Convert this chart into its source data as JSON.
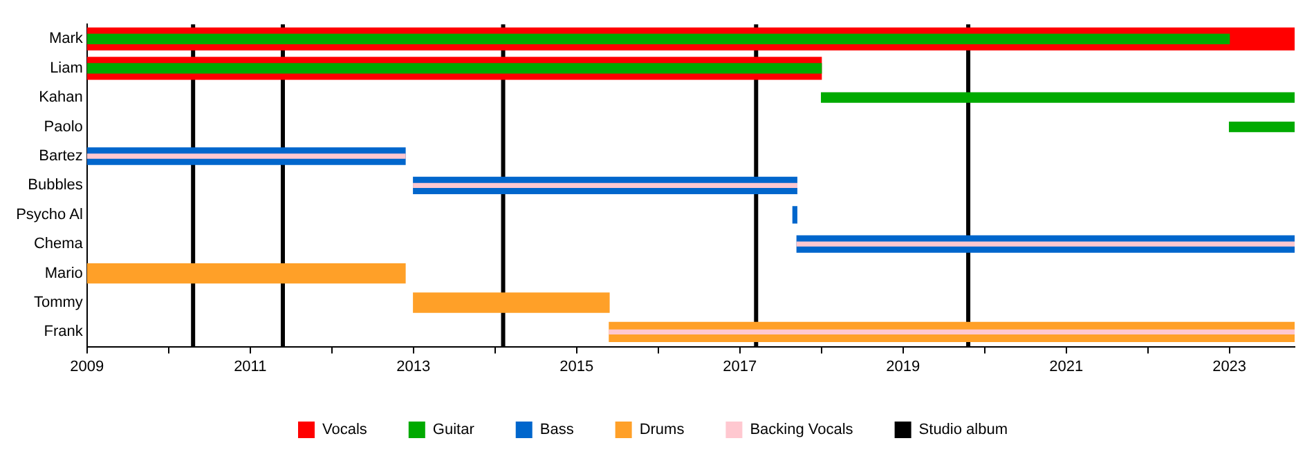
{
  "chart_data": {
    "type": "bar",
    "orientation": "horizontal",
    "categories": [
      "Mark",
      "Liam",
      "Kahan",
      "Paolo",
      "Bartez",
      "Bubbles",
      "Psycho Al",
      "Chema",
      "Mario",
      "Tommy",
      "Frank"
    ],
    "series": [
      {
        "name": "Vocals",
        "color": "#ff0000",
        "base": [
          2009,
          2009,
          null,
          null,
          null,
          null,
          null,
          null,
          null,
          null,
          null
        ],
        "values": [
          14.8,
          9,
          null,
          null,
          null,
          null,
          null,
          null,
          null,
          null,
          null
        ]
      },
      {
        "name": "Guitar",
        "color": "#00aa00",
        "base": [
          2009,
          2009,
          2018,
          2023,
          null,
          null,
          null,
          null,
          null,
          null,
          null
        ],
        "values": [
          14,
          9,
          5.8,
          0.8,
          null,
          null,
          null,
          null,
          null,
          null,
          null
        ]
      },
      {
        "name": "Bass",
        "color": "#0066cc",
        "base": [
          null,
          null,
          null,
          null,
          2009,
          2013,
          2017.65,
          2017.7,
          null,
          null,
          null
        ],
        "values": [
          null,
          null,
          null,
          null,
          3.9,
          4.7,
          0.05,
          6.1,
          null,
          null,
          null
        ]
      },
      {
        "name": "Drums",
        "color": "#ffa028",
        "base": [
          null,
          null,
          null,
          null,
          null,
          null,
          null,
          null,
          2009,
          2013,
          2015.4
        ],
        "values": [
          null,
          null,
          null,
          null,
          null,
          null,
          null,
          null,
          3.9,
          2.4,
          8.4
        ]
      },
      {
        "name": "Backing Vocals",
        "color": "#ffc8d0",
        "base": [
          null,
          null,
          null,
          null,
          2009,
          2013,
          null,
          2017.7,
          null,
          null,
          2015.4
        ],
        "values": [
          null,
          null,
          null,
          null,
          3.9,
          4.7,
          null,
          6.1,
          null,
          null,
          8.4
        ]
      }
    ],
    "xlim": [
      2009,
      2023.8
    ],
    "xticks": [
      2009,
      {
        "value": 2010,
        "label": null
      },
      2011,
      {
        "value": 2012,
        "label": null
      },
      2013,
      {
        "value": 2014,
        "label": null
      },
      2015,
      {
        "value": 2016,
        "label": null
      },
      2017,
      {
        "value": 2018,
        "label": null
      },
      2019,
      {
        "value": 2020,
        "label": null
      },
      2021,
      {
        "value": 2022,
        "label": null
      },
      2023
    ],
    "ref_lines": [
      {
        "axis": "x",
        "value": 2010.3,
        "label": "Studio album",
        "color": "#000000"
      },
      {
        "axis": "x",
        "value": 2011.4,
        "color": "#000000"
      },
      {
        "axis": "x",
        "value": 2014.1,
        "color": "#000000"
      },
      {
        "axis": "x",
        "value": 2017.2,
        "color": "#000000"
      },
      {
        "axis": "x",
        "value": 2019.8,
        "color": "#000000"
      }
    ],
    "grid": false,
    "legend": "bottom"
  }
}
